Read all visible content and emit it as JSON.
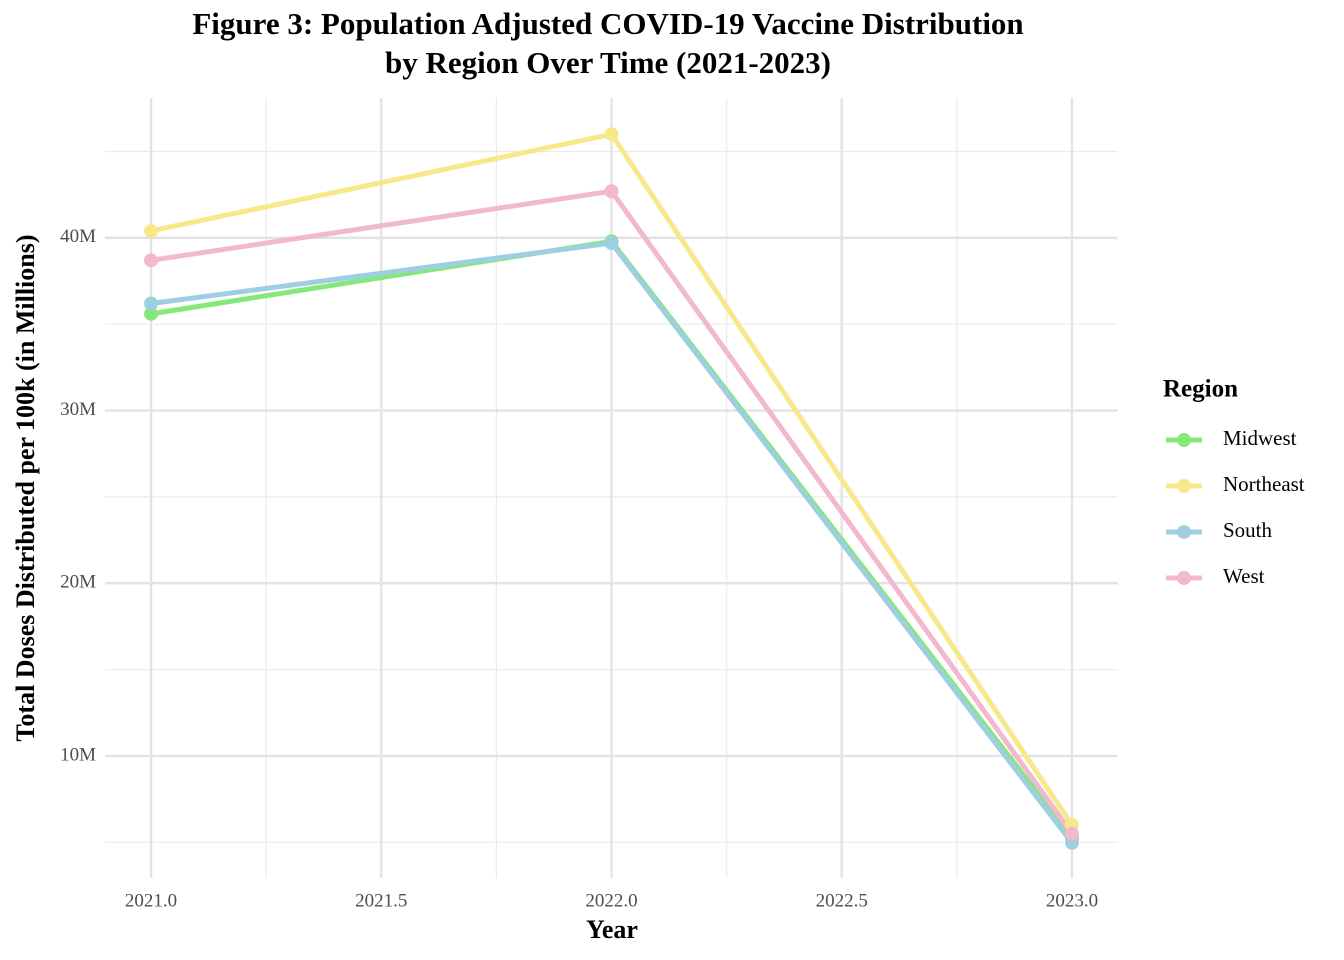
{
  "chart_data": {
    "type": "line",
    "title": [
      "Figure 3: Population Adjusted COVID-19 Vaccine Distribution",
      "by Region Over Time (2021-2023)"
    ],
    "x_label": "Year",
    "y_label": "Total Doses Distributed per 100k (in Millions)",
    "x": [
      2021,
      2022,
      2023
    ],
    "series": [
      {
        "name": "Midwest",
        "color": "#86e87a",
        "values": [
          35.6,
          39.8,
          5.25
        ]
      },
      {
        "name": "Northeast",
        "color": "#f7e98a",
        "values": [
          40.4,
          46.0,
          6.0
        ]
      },
      {
        "name": "South",
        "color": "#9ecfe0",
        "values": [
          36.2,
          39.7,
          4.97
        ]
      },
      {
        "name": "West",
        "color": "#f2b8d0",
        "values": [
          38.7,
          42.7,
          5.5
        ]
      }
    ],
    "xlim": [
      2020.9,
      2023.1
    ],
    "xticks": [
      {
        "value": 2021,
        "label": "2021.0"
      },
      {
        "value": 2021.5,
        "label": "2021.5"
      },
      {
        "value": 2022,
        "label": "2022.0"
      },
      {
        "value": 2022.5,
        "label": "2022.5"
      },
      {
        "value": 2023,
        "label": "2023.0"
      }
    ],
    "ylim": [
      2.93,
      48.1
    ],
    "yticks": [
      {
        "value": 10,
        "label": "10M"
      },
      {
        "value": 20,
        "label": "20M"
      },
      {
        "value": 30,
        "label": "30M"
      },
      {
        "value": 40,
        "label": "40M"
      }
    ],
    "legend_title": "Region",
    "legend_position": "right",
    "grid": true
  }
}
